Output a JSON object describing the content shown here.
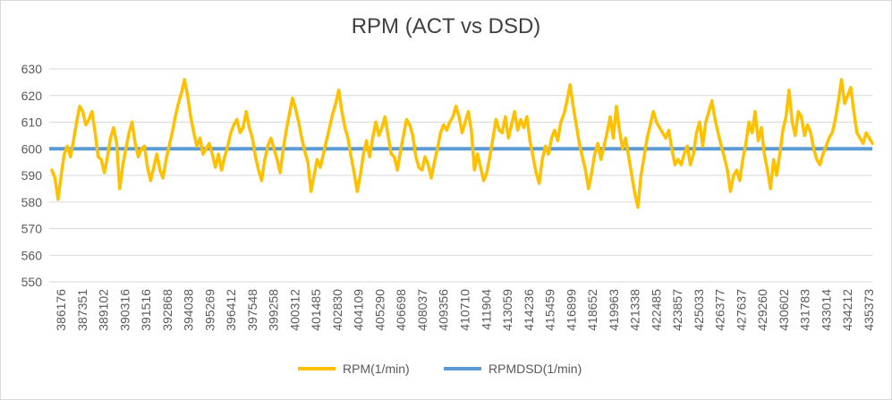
{
  "chart_data": {
    "type": "line",
    "title": "RPM (ACT vs DSD)",
    "xlabel": "",
    "ylabel": "",
    "ylim": [
      550,
      630
    ],
    "yticks": [
      550,
      560,
      570,
      580,
      590,
      600,
      610,
      620,
      630
    ],
    "grid": true,
    "legend_position": "bottom",
    "x_tick_labels": [
      "386176",
      "387351",
      "389102",
      "390316",
      "391516",
      "392868",
      "394038",
      "395269",
      "396412",
      "397548",
      "399258",
      "400312",
      "401485",
      "402830",
      "404109",
      "405290",
      "406698",
      "408037",
      "409356",
      "410710",
      "411904",
      "413059",
      "414236",
      "415459",
      "416899",
      "418652",
      "419963",
      "421338",
      "422485",
      "423857",
      "425033",
      "426377",
      "427637",
      "429260",
      "430602",
      "431783",
      "433014",
      "434212",
      "435373"
    ],
    "series": [
      {
        "name": "RPM(1/min)",
        "color": "#FFC000",
        "values": [
          592,
          589,
          581,
          590,
          598,
          601,
          597,
          603,
          610,
          616,
          614,
          609,
          611,
          614,
          606,
          597,
          596,
          591,
          597,
          604,
          608,
          602,
          585,
          594,
          600,
          606,
          610,
          602,
          597,
          600,
          601,
          593,
          588,
          593,
          598,
          592,
          589,
          596,
          601,
          606,
          612,
          617,
          621,
          626,
          620,
          612,
          606,
          601,
          604,
          598,
          600,
          602,
          598,
          593,
          598,
          592,
          597,
          601,
          606,
          609,
          611,
          606,
          608,
          614,
          608,
          604,
          597,
          592,
          588,
          596,
          601,
          604,
          600,
          596,
          591,
          600,
          607,
          613,
          619,
          615,
          610,
          604,
          599,
          595,
          584,
          590,
          596,
          593,
          598,
          603,
          608,
          613,
          617,
          622,
          614,
          608,
          604,
          597,
          591,
          584,
          590,
          598,
          603,
          597,
          604,
          610,
          605,
          608,
          612,
          605,
          598,
          597,
          592,
          599,
          605,
          611,
          609,
          605,
          597,
          593,
          592,
          597,
          594,
          589,
          595,
          600,
          606,
          609,
          607,
          610,
          612,
          616,
          612,
          606,
          610,
          614,
          607,
          592,
          598,
          593,
          588,
          591,
          597,
          604,
          611,
          607,
          606,
          612,
          604,
          609,
          614,
          607,
          611,
          608,
          612,
          603,
          597,
          591,
          587,
          596,
          601,
          598,
          604,
          607,
          603,
          610,
          613,
          618,
          624,
          616,
          609,
          602,
          597,
          592,
          585,
          591,
          598,
          602,
          596,
          601,
          606,
          612,
          604,
          616,
          607,
          600,
          604,
          597,
          590,
          583,
          578,
          590,
          597,
          604,
          609,
          614,
          610,
          608,
          606,
          604,
          607,
          600,
          594,
          596,
          594,
          598,
          601,
          594,
          598,
          606,
          610,
          601,
          610,
          614,
          618,
          611,
          606,
          601,
          597,
          592,
          584,
          590,
          592,
          588,
          596,
          602,
          610,
          606,
          614,
          603,
          608,
          598,
          592,
          585,
          596,
          590,
          598,
          607,
          612,
          622,
          610,
          605,
          614,
          612,
          605,
          609,
          606,
          600,
          596,
          594,
          598,
          601,
          604,
          606,
          611,
          618,
          626,
          617,
          620,
          623,
          614,
          606,
          604,
          602,
          606,
          604,
          602
        ]
      },
      {
        "name": "RPMDSD(1/min)",
        "color": "#5B9BD5",
        "values": [
          600,
          600
        ]
      }
    ]
  }
}
